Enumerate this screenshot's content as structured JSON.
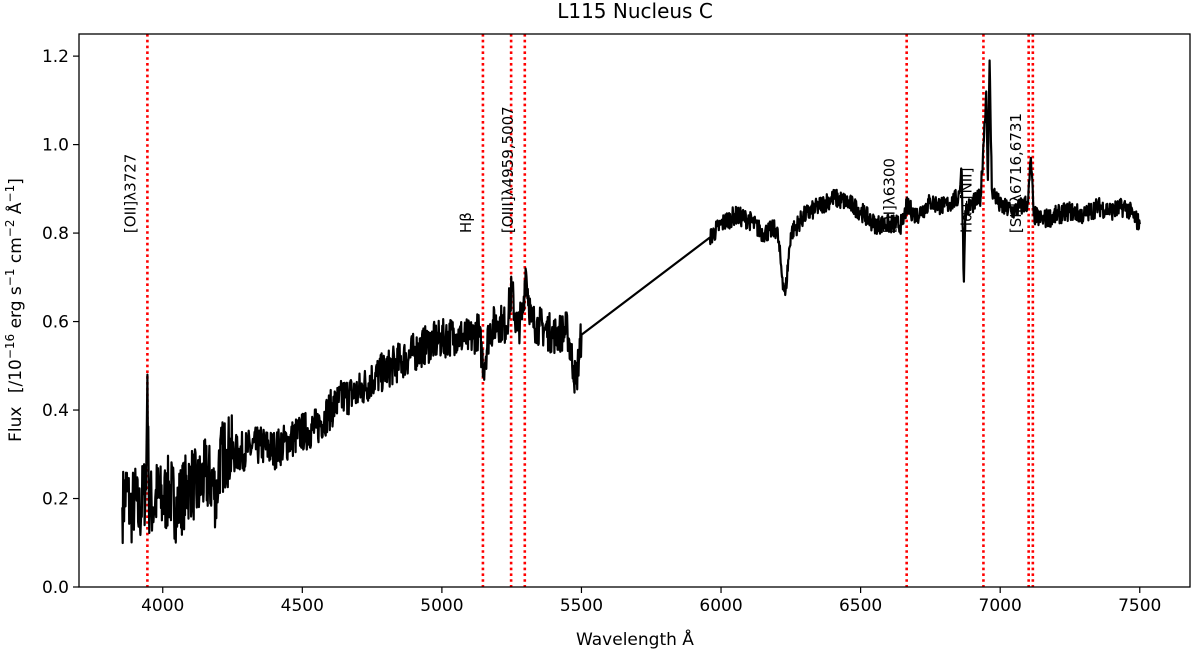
{
  "chart_data": {
    "type": "line",
    "title": "L115 Nucleus C",
    "xlabel": "Wavelength Å",
    "ylabel_parts": {
      "flux": "Flux",
      "units_open": "[/10",
      "exp_16": "−16",
      "erg": " erg s",
      "exp_s": "−1",
      "cm": " cm",
      "exp_cm": "−2",
      "angstrom": " Å",
      "exp_a": "−1",
      "units_close": "]"
    },
    "xlim": [
      3700,
      7680
    ],
    "ylim": [
      0,
      1.25
    ],
    "xticks": [
      4000,
      4500,
      5000,
      5500,
      6000,
      6500,
      7000,
      7500
    ],
    "yticks": [
      0.0,
      0.2,
      0.4,
      0.6,
      0.8,
      1.0,
      1.2
    ],
    "yticks_labels": [
      "0.0",
      "0.2",
      "0.4",
      "0.6",
      "0.8",
      "1.0",
      "1.2"
    ],
    "series": [
      {
        "color": "#000000",
        "x": [
          3855,
          3870,
          3885,
          3900,
          3915,
          3930,
          3940,
          3945,
          3950,
          3965,
          3980,
          4000,
          4025,
          4050,
          4075,
          4100,
          4125,
          4150,
          4175,
          4195,
          4200,
          4230,
          4260,
          4300,
          4350,
          4400,
          4450,
          4500,
          4550,
          4600,
          4650,
          4700,
          4750,
          4800,
          4850,
          4900,
          4950,
          5000,
          5050,
          5100,
          5130,
          5150,
          5170,
          5200,
          5230,
          5250,
          5270,
          5290,
          5300,
          5320,
          5350,
          5400,
          5450,
          5470,
          5480,
          5500,
          5960,
          6000,
          6050,
          6100,
          6150,
          6200,
          6220,
          6230,
          6250,
          6300,
          6350,
          6400,
          6450,
          6500,
          6550,
          6600,
          6650,
          6665,
          6700,
          6750,
          6800,
          6850,
          6862,
          6870,
          6875,
          6890,
          6930,
          6940,
          6950,
          6956,
          6962,
          6970,
          7000,
          7050,
          7100,
          7110,
          7120,
          7150,
          7200,
          7250,
          7300,
          7350,
          7400,
          7450,
          7500
        ],
        "y": [
          0.18,
          0.22,
          0.17,
          0.2,
          0.16,
          0.21,
          0.22,
          0.48,
          0.2,
          0.18,
          0.21,
          0.19,
          0.22,
          0.18,
          0.21,
          0.24,
          0.22,
          0.25,
          0.24,
          0.2,
          0.28,
          0.31,
          0.3,
          0.31,
          0.32,
          0.31,
          0.33,
          0.35,
          0.36,
          0.4,
          0.43,
          0.44,
          0.47,
          0.49,
          0.51,
          0.53,
          0.55,
          0.56,
          0.57,
          0.56,
          0.58,
          0.5,
          0.58,
          0.6,
          0.59,
          0.67,
          0.58,
          0.62,
          0.72,
          0.6,
          0.59,
          0.57,
          0.58,
          0.5,
          0.46,
          0.57,
          0.79,
          0.82,
          0.84,
          0.83,
          0.8,
          0.81,
          0.7,
          0.66,
          0.8,
          0.84,
          0.86,
          0.88,
          0.87,
          0.85,
          0.82,
          0.82,
          0.82,
          0.86,
          0.84,
          0.87,
          0.86,
          0.88,
          0.94,
          0.69,
          0.85,
          0.86,
          0.88,
          1.0,
          1.12,
          0.92,
          1.19,
          0.9,
          0.86,
          0.85,
          0.87,
          0.97,
          0.84,
          0.83,
          0.84,
          0.85,
          0.84,
          0.86,
          0.85,
          0.86,
          0.82
        ]
      }
    ],
    "emission_lines": [
      {
        "label": "[OII]λ3727",
        "x": 3945
      },
      {
        "label": "Hβ",
        "x": 5147
      },
      {
        "label": "",
        "x": 5248
      },
      {
        "label": "[OIII]λ4959,5007",
        "x": 5297
      },
      {
        "label": "[OI]λ6300",
        "x": 6665
      },
      {
        "label": "Hα+[NII]",
        "x": 6940
      },
      {
        "label": "",
        "x": 7102
      },
      {
        "label": "[SII]λ6716,6731",
        "x": 7117
      }
    ],
    "line_color": "#ff0000",
    "grid": false,
    "legend": false
  }
}
